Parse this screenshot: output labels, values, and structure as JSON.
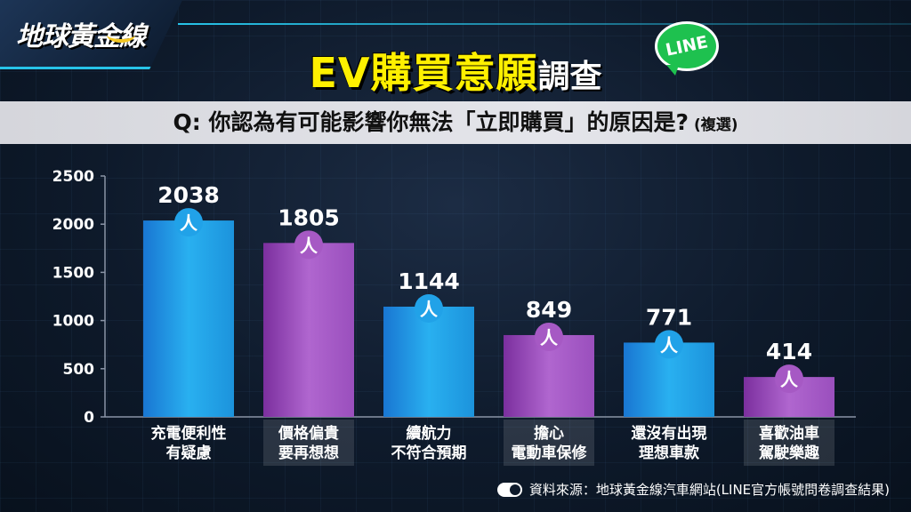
{
  "header": {
    "logo_text": "地球黃金線",
    "title_main": "EV購買意願",
    "title_suffix": "調查",
    "line_badge": "LINE",
    "question": "Q: 你認為有可能影響你無法「立即購買」的原因是?",
    "question_note": "(複選)"
  },
  "source": "資料來源：地球黃金線汽車網站(LINE官方帳號問卷調查結果)",
  "colors": {
    "blue_bar": "#21a2e8",
    "purple_bar": "#a659c4",
    "title_yellow": "#fff000",
    "line_green": "#1ec14f"
  },
  "chart_data": {
    "type": "bar",
    "categories": [
      [
        "充電便利性",
        "有疑慮"
      ],
      [
        "價格偏貴",
        "要再想想"
      ],
      [
        "續航力",
        "不符合預期"
      ],
      [
        "擔心",
        "電動車保修"
      ],
      [
        "還沒有出現",
        "理想車款"
      ],
      [
        "喜歡油車",
        "駕駛樂趣"
      ]
    ],
    "values": [
      2038,
      1805,
      1144,
      849,
      771,
      414
    ],
    "value_labels": [
      "2038",
      "1805",
      "1144",
      "849",
      "771",
      "414"
    ],
    "unit_marker": "人",
    "bar_colors": [
      "blue",
      "purple",
      "blue",
      "purple",
      "blue",
      "purple"
    ],
    "ylim": [
      0,
      2500
    ],
    "yticks": [
      0,
      500,
      1000,
      1500,
      2000,
      2500
    ],
    "grid": false
  }
}
